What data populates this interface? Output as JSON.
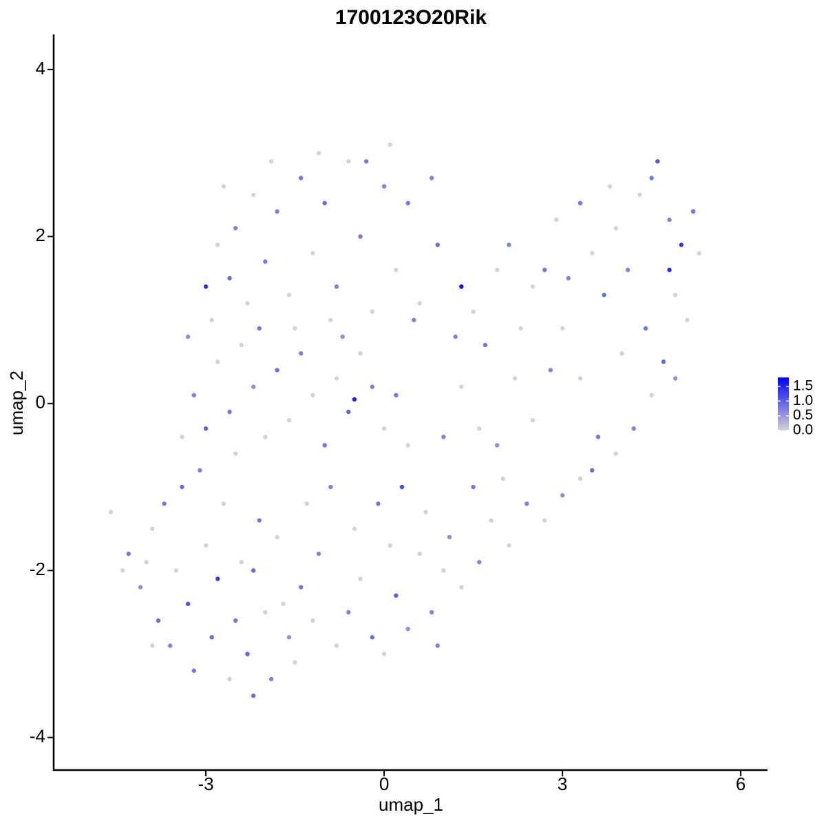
{
  "chart_data": {
    "type": "scatter",
    "title": "1700123O20Rik",
    "x_label": "umap_1",
    "y_label": "umap_2",
    "xlim": [
      -5.56,
      6.45
    ],
    "ylim": [
      -4.39,
      4.42
    ],
    "xticks": [
      -3,
      0,
      3,
      6
    ],
    "yticks": [
      -4,
      -2,
      0,
      2,
      4
    ],
    "color_low": "#d3d3d3",
    "color_high": "#0000ff",
    "clim": [
      0,
      1.8
    ],
    "colorbar_ticks": [
      {
        "value": 0,
        "label": "0.0"
      },
      {
        "value": 0.5,
        "label": "0.5"
      },
      {
        "value": 1,
        "label": "1.0"
      },
      {
        "value": 1.5,
        "label": "1.5"
      }
    ],
    "x": [
      -4.6,
      -4.3,
      -4.1,
      -3.9,
      -3.8,
      -3.6,
      -3.5,
      -3.3,
      -3.2,
      -3.0,
      -2.9,
      -2.8,
      -2.6,
      -2.5,
      -2.4,
      -2.3,
      -2.2,
      -2.0,
      -1.9,
      -1.8,
      -1.6,
      -1.5,
      -1.4,
      -1.2,
      -1.1,
      -3.7,
      -4.0,
      -3.4,
      -2.7,
      -2.1,
      -1.3,
      -3.1,
      -2.5,
      -4.4,
      -3.9,
      -2.2,
      -1.7,
      -0.8,
      -0.6,
      -0.4,
      -0.2,
      0,
      0.2,
      0.4,
      0.6,
      0.8,
      -0.5,
      -0.1,
      0.3,
      0.7,
      1.0,
      0.9,
      -0.9,
      0.1,
      1.1,
      1.3,
      1.6,
      1.8,
      2.1,
      2.4,
      2.7,
      3.0,
      3.3,
      3.5,
      1.5,
      2.0,
      -3.4,
      -3.2,
      -3.0,
      -2.8,
      -2.6,
      -2.4,
      -2.2,
      -2.0,
      -1.8,
      -1.6,
      -1.4,
      -1.2,
      -1.0,
      -0.8,
      -0.6,
      -0.4,
      -0.2,
      0,
      0.2,
      0.4,
      -3.3,
      -2.9,
      -2.1,
      -1.5,
      -0.7,
      -0.5,
      -3.0,
      -2.8,
      -2.6,
      -2.5,
      -2.3,
      -2.2,
      -2.0,
      -1.8,
      -1.6,
      -1.4,
      -1.2,
      -1.0,
      -0.8,
      -0.6,
      -0.4,
      -0.2,
      0,
      0.2,
      0.4,
      0.6,
      0.8,
      0.9,
      -1.1,
      0.1,
      -0.3,
      -1.9,
      -2.7,
      -0.9,
      0.5,
      1.3,
      1.2,
      1.5,
      1.7,
      1.9,
      2.1,
      2.3,
      2.5,
      2.7,
      2.9,
      3.1,
      3.3,
      3.5,
      3.7,
      3.9,
      4.1,
      4.3,
      4.4,
      4.6,
      4.8,
      5.0,
      5.2,
      5.3,
      4.9,
      4.7,
      4.5,
      4.2,
      3.9,
      3.6,
      3.3,
      3.0,
      2.8,
      2.5,
      2.2,
      1.9,
      1.6,
      1.3,
      1.0,
      4.0,
      5.1,
      4.9,
      3.8,
      4.5,
      4.8
    ],
    "y": [
      -1.3,
      -1.8,
      -2.2,
      -1.5,
      -2.6,
      -2.9,
      -2.0,
      -2.4,
      -3.2,
      -1.7,
      -2.8,
      -2.1,
      -3.3,
      -2.6,
      -1.9,
      -3.0,
      -3.5,
      -2.5,
      -3.3,
      -1.6,
      -2.8,
      -3.1,
      -2.2,
      -2.6,
      -1.8,
      -1.2,
      -1.9,
      -1.0,
      -1.2,
      -1.4,
      -1.2,
      -0.8,
      -0.6,
      -2.0,
      -2.9,
      -2.0,
      -2.4,
      -2.9,
      -2.5,
      -2.1,
      -2.8,
      -3.0,
      -2.3,
      -2.7,
      -1.8,
      -2.5,
      -1.5,
      -1.2,
      -1.0,
      -1.3,
      -2.0,
      -2.9,
      -1.0,
      -1.7,
      -1.6,
      -2.2,
      -1.9,
      -1.4,
      -1.7,
      -1.2,
      -1.4,
      -1.1,
      -0.9,
      -0.8,
      -1.0,
      -0.9,
      -0.4,
      0.1,
      -0.3,
      0.5,
      -0.1,
      0.7,
      0.2,
      -0.4,
      0.4,
      -0.2,
      0.6,
      0.1,
      -0.5,
      0.3,
      -0.1,
      0.6,
      0.2,
      -0.3,
      0.1,
      -0.5,
      0.8,
      1.0,
      0.9,
      0.9,
      0.8,
      0.05,
      1.4,
      1.9,
      1.5,
      2.1,
      1.2,
      2.5,
      1.7,
      2.3,
      1.3,
      2.7,
      1.8,
      2.4,
      1.4,
      2.9,
      2.0,
      1.1,
      2.6,
      1.6,
      2.4,
      1.2,
      2.7,
      1.9,
      3.0,
      3.1,
      2.9,
      2.9,
      2.6,
      1.0,
      1.0,
      1.4,
      0.8,
      1.1,
      0.7,
      1.6,
      1.9,
      0.9,
      1.4,
      1.6,
      2.2,
      1.5,
      2.4,
      1.8,
      1.3,
      2.1,
      1.6,
      2.5,
      0.9,
      2.9,
      2.2,
      1.9,
      2.3,
      1.8,
      1.3,
      0.5,
      0.1,
      -0.3,
      -0.6,
      -0.4,
      0.3,
      0.9,
      0.4,
      -0.2,
      0.3,
      -0.5,
      -0.3,
      0.2,
      -0.4,
      0.6,
      1.0,
      0.3,
      2.6,
      2.7,
      1.6
    ],
    "expression": [
      0,
      0.8,
      0.6,
      0,
      0.9,
      0.7,
      0,
      1.1,
      0.8,
      0,
      0.9,
      1.3,
      0,
      0.8,
      0,
      1.0,
      0.9,
      0,
      0.7,
      0,
      0.6,
      0,
      0.8,
      0,
      0.7,
      0.8,
      0,
      0.9,
      0,
      0.8,
      0,
      0.7,
      0,
      0,
      0,
      0.9,
      0,
      0,
      0.7,
      0,
      0.9,
      0,
      1.0,
      0.6,
      0,
      0.7,
      0,
      0.8,
      1.2,
      0,
      0,
      0.7,
      0.7,
      0,
      0.6,
      0,
      0.7,
      0,
      0,
      0.7,
      0,
      0.6,
      0,
      0.9,
      0.8,
      0,
      0,
      0.7,
      1.0,
      0,
      0.8,
      0,
      0.6,
      0,
      0.9,
      0,
      0.7,
      0,
      0.8,
      0,
      1.0,
      0,
      0.7,
      0,
      0.8,
      0,
      0.6,
      0,
      0.8,
      0,
      0.6,
      1.5,
      1.4,
      0,
      0.9,
      0.7,
      0,
      0,
      0.8,
      0.7,
      0,
      0.8,
      0,
      0.9,
      0.7,
      0,
      0.8,
      0,
      0.7,
      0,
      0.8,
      0,
      0.7,
      0.9,
      0,
      0,
      0.8,
      0,
      0,
      0,
      0.7,
      1.7,
      0.7,
      0,
      0.8,
      0,
      0.7,
      0,
      0,
      0.8,
      0,
      0.7,
      0.8,
      0,
      0.9,
      0,
      0.7,
      0,
      0.8,
      1.1,
      0.7,
      1.3,
      0.8,
      0,
      0,
      0.9,
      0,
      0.7,
      0,
      0.8,
      0,
      0,
      0.7,
      0,
      0,
      0.6,
      0,
      0,
      0.7,
      0,
      0,
      0.6,
      0,
      0.8,
      1.5
    ]
  }
}
